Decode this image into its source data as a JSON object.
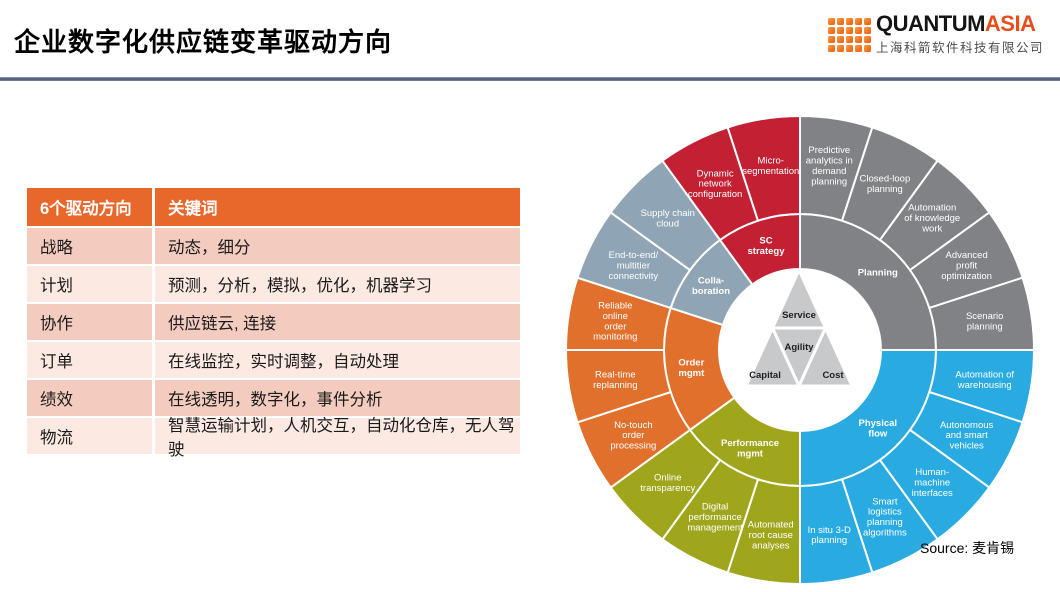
{
  "slide": {
    "title": "企业数字化供应链变革驱动方向",
    "source_label": "Source: 麦肯锡",
    "logo": {
      "brand_black": "QUANTUM",
      "brand_orange": "ASIA",
      "company": "上海科箭软件科技有限公司"
    }
  },
  "colors": {
    "accent_orange": "#E8672B",
    "table_row_dark": "#F3CCBF",
    "table_row_light": "#FBE9E2",
    "brand_orange": "#ED6C1E",
    "title_rule_blue": "#53627F"
  },
  "table": {
    "headers": [
      "6个驱动方向",
      "关键词"
    ],
    "rows": [
      {
        "direction": "战略",
        "keywords": "动态，细分"
      },
      {
        "direction": "计划",
        "keywords": "预测，分析，模拟，优化，机器学习"
      },
      {
        "direction": "协作",
        "keywords": "供应链云, 连接"
      },
      {
        "direction": "订单",
        "keywords": "在线监控，实时调整，自动处理"
      },
      {
        "direction": "绩效",
        "keywords": "在线透明，数字化，事件分析"
      },
      {
        "direction": "物流",
        "keywords": "智慧运输计划，人机交互，自动化仓库，无人驾驶"
      }
    ]
  },
  "chart_data": {
    "type": "sunburst",
    "description": "Digital supply chain transformation wheel, 6 inner groups with 20 outer segments, angles clockwise from 12 o'clock",
    "center_triangle": {
      "top": "Service",
      "middle": "Agility",
      "bottom_left": "Capital",
      "bottom_right": "Cost"
    },
    "groups": [
      {
        "name": "Planning",
        "label_lines": [
          "Planning"
        ],
        "color": "#818285",
        "start_angle": 0,
        "end_angle": 90,
        "segments": [
          {
            "label": "Predictive analytics in demand planning",
            "lines": [
              "Predictive",
              "analytics in",
              "demand",
              "planning"
            ]
          },
          {
            "label": "Closed-loop planning",
            "lines": [
              "Closed-loop",
              "planning"
            ]
          },
          {
            "label": "Automation of knowledge work",
            "lines": [
              "Automation",
              "of knowledge",
              "work"
            ]
          },
          {
            "label": "Advanced profit optimization",
            "lines": [
              "Advanced",
              "profit",
              "optimization"
            ]
          },
          {
            "label": "Scenario planning",
            "lines": [
              "Scenario",
              "planning"
            ]
          }
        ]
      },
      {
        "name": "Physical flow",
        "label_lines": [
          "Physical",
          "flow"
        ],
        "color": "#29ABE2",
        "start_angle": 90,
        "end_angle": 180,
        "segments": [
          {
            "label": "Automation of warehousing",
            "lines": [
              "Automation of",
              "warehousing"
            ]
          },
          {
            "label": "Autonomous and smart vehicles",
            "lines": [
              "Autonomous",
              "and smart",
              "vehicles"
            ]
          },
          {
            "label": "Human-machine interfaces",
            "lines": [
              "Human-",
              "machine",
              "interfaces"
            ]
          },
          {
            "label": "Smart logistics planning algorithms",
            "lines": [
              "Smart",
              "logistics",
              "planning",
              "algorithms"
            ]
          },
          {
            "label": "In situ 3-D planning",
            "lines": [
              "In situ 3-D",
              "planning"
            ]
          }
        ]
      },
      {
        "name": "Performance mgmt",
        "label_lines": [
          "Performance",
          "mgmt"
        ],
        "color": "#A0A61B",
        "start_angle": 180,
        "end_angle": 234,
        "segments": [
          {
            "label": "Automated root cause analyses",
            "lines": [
              "Automated",
              "root cause",
              "analyses"
            ]
          },
          {
            "label": "Digital performance management",
            "lines": [
              "Digital",
              "performance",
              "management"
            ]
          },
          {
            "label": "Online transparency",
            "lines": [
              "Online",
              "transparency"
            ]
          }
        ]
      },
      {
        "name": "Order mgmt",
        "label_lines": [
          "Order",
          "mgmt"
        ],
        "color": "#E2702D",
        "start_angle": 234,
        "end_angle": 288,
        "segments": [
          {
            "label": "No-touch order processing",
            "lines": [
              "No-touch",
              "order",
              "processing"
            ]
          },
          {
            "label": "Real-time replanning",
            "lines": [
              "Real-time",
              "replanning"
            ]
          },
          {
            "label": "Reliable online order monitoring",
            "lines": [
              "Reliable",
              "online",
              "order",
              "monitoring"
            ]
          }
        ]
      },
      {
        "name": "Collaboration",
        "label_lines": [
          "Colla-",
          "boration"
        ],
        "color": "#8FA5B5",
        "start_angle": 288,
        "end_angle": 324,
        "segments": [
          {
            "label": "End-to-end/multitier connectivity",
            "lines": [
              "End-to-end/",
              "multitier",
              "connectivity"
            ]
          },
          {
            "label": "Supply chain cloud",
            "lines": [
              "Supply chain",
              "cloud"
            ]
          }
        ]
      },
      {
        "name": "SC strategy",
        "label_lines": [
          "SC",
          "strategy"
        ],
        "color": "#C32033",
        "start_angle": 324,
        "end_angle": 360,
        "segments": [
          {
            "label": "Dynamic network configuration",
            "lines": [
              "Dynamic",
              "network",
              "configuration"
            ]
          },
          {
            "label": "Micro-segmentation",
            "lines": [
              "Micro-",
              "segmentation"
            ]
          }
        ]
      }
    ]
  }
}
